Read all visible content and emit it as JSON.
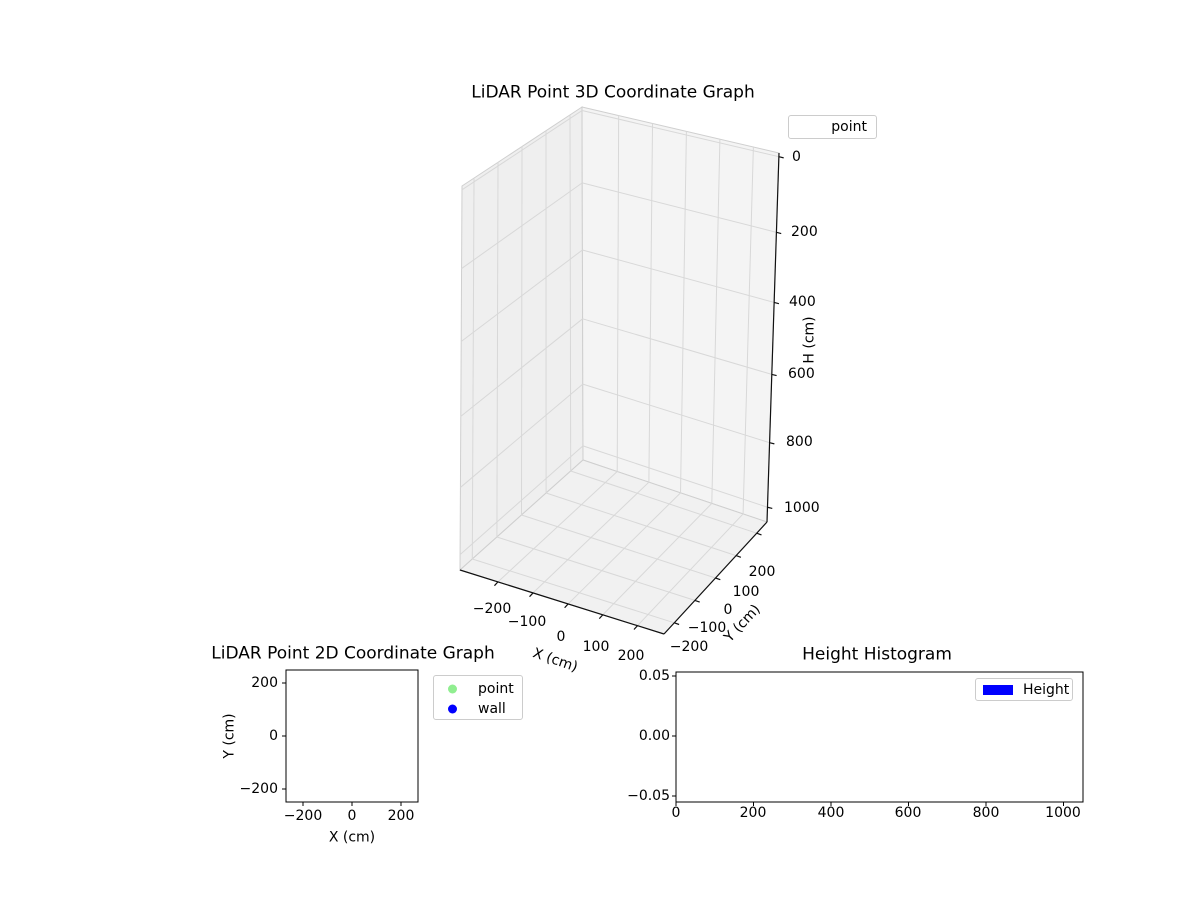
{
  "figure": {
    "background": "#ffffff"
  },
  "colors": {
    "pane_left": "#efefef",
    "pane_right": "#f4f4f4",
    "pane_bottom": "#f1f1f1",
    "pane_edge": "#cfcfcf",
    "grid": "#d8d8d8",
    "axis_line": "#111111",
    "spine": "#000000",
    "legend_border": "#cccccc",
    "point_marker": "#90EE90",
    "wall_marker": "#0000FF",
    "hist_bar": "#0000FF"
  },
  "plot3d": {
    "title": "LiDAR Point 3D Coordinate Graph",
    "xlabel": "X (cm)",
    "ylabel": "Y (cm)",
    "zlabel": "H (cm)",
    "xticks": [
      "−200",
      "−100",
      "0",
      "100",
      "200"
    ],
    "yticks": [
      "−200",
      "−100",
      "0",
      "100",
      "200"
    ],
    "zticks": [
      "0",
      "200",
      "400",
      "600",
      "800",
      "1000"
    ],
    "legend": {
      "items": [
        {
          "label": "point"
        }
      ]
    }
  },
  "plot2d": {
    "title": "LiDAR Point 2D Coordinate Graph",
    "xlabel": "X (cm)",
    "ylabel": "Y (cm)",
    "xticks": [
      "−200",
      "0",
      "200"
    ],
    "yticks": [
      "200",
      "0",
      "−200"
    ],
    "legend": {
      "items": [
        {
          "label": "point",
          "color": "#90EE90"
        },
        {
          "label": "wall",
          "color": "#0000FF"
        }
      ]
    }
  },
  "hist": {
    "title": "Height Histogram",
    "xticks": [
      "0",
      "200",
      "400",
      "600",
      "800",
      "1000"
    ],
    "yticks": [
      "0.05",
      "0.00",
      "−0.05"
    ],
    "legend": {
      "items": [
        {
          "label": "Height",
          "color": "#0000FF"
        }
      ]
    }
  },
  "chart_data": [
    {
      "type": "scatter",
      "projection": "3d",
      "title": "LiDAR Point 3D Coordinate Graph",
      "xlabel": "X (cm)",
      "ylabel": "Y (cm)",
      "zlabel": "H (cm)",
      "xlim": [
        -250,
        250
      ],
      "ylim": [
        -250,
        250
      ],
      "zlim": [
        0,
        1050
      ],
      "zaxis_inverted": true,
      "xticks": [
        -200,
        -100,
        0,
        100,
        200
      ],
      "yticks": [
        -200,
        -100,
        0,
        100,
        200
      ],
      "zticks": [
        0,
        200,
        400,
        600,
        800,
        1000
      ],
      "grid": true,
      "legend_position": "upper right",
      "series": [
        {
          "name": "point",
          "color": "#90EE90",
          "points": []
        }
      ]
    },
    {
      "type": "scatter",
      "title": "LiDAR Point 2D Coordinate Graph",
      "xlabel": "X (cm)",
      "ylabel": "Y (cm)",
      "xlim": [
        -250,
        250
      ],
      "ylim": [
        -250,
        250
      ],
      "xticks": [
        -200,
        0,
        200
      ],
      "yticks": [
        200,
        0,
        -200
      ],
      "grid": false,
      "legend_position": "outside right",
      "series": [
        {
          "name": "point",
          "color": "#90EE90",
          "points": []
        },
        {
          "name": "wall",
          "color": "#0000FF",
          "points": []
        }
      ]
    },
    {
      "type": "bar",
      "subtype": "histogram",
      "title": "Height Histogram",
      "xlabel": "",
      "ylabel": "",
      "xlim": [
        0,
        1050
      ],
      "ylim": [
        -0.05,
        0.05
      ],
      "xticks": [
        0,
        200,
        400,
        600,
        800,
        1000
      ],
      "yticks": [
        0.05,
        0.0,
        -0.05
      ],
      "grid": false,
      "legend_position": "upper right",
      "series": [
        {
          "name": "Height",
          "color": "#0000FF",
          "values": []
        }
      ]
    }
  ]
}
